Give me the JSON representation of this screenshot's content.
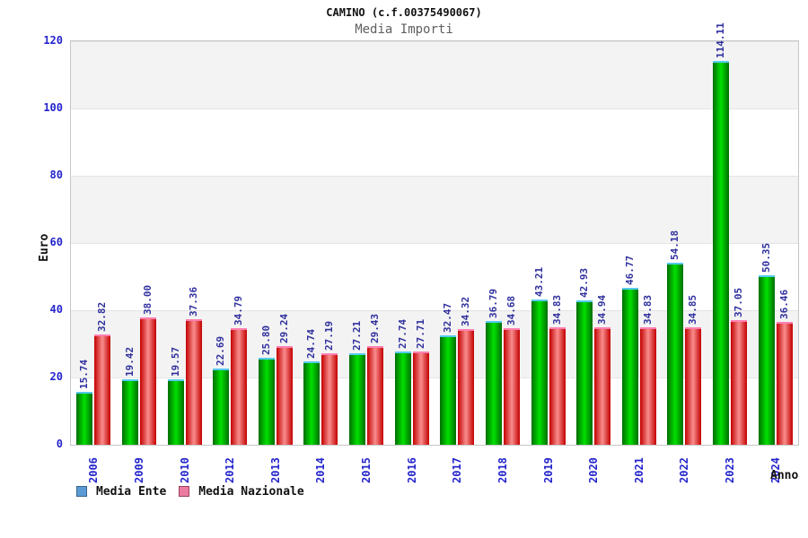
{
  "chart_data": {
    "type": "bar",
    "title": "CAMINO (c.f.00375490067)",
    "subtitle": "Media Importi",
    "xlabel": "Anno",
    "ylabel": "Euro",
    "ylim": [
      0,
      120
    ],
    "yticks": [
      0,
      20,
      40,
      60,
      80,
      100,
      120
    ],
    "grid": "horizontal-bands-every-20",
    "legend_position": "bottom-left",
    "categories": [
      "2006",
      "2009",
      "2010",
      "2012",
      "2013",
      "2014",
      "2015",
      "2016",
      "2017",
      "2018",
      "2019",
      "2020",
      "2021",
      "2022",
      "2023",
      "2024"
    ],
    "series": [
      {
        "name": "Media Ente",
        "values": [
          15.74,
          19.42,
          19.57,
          22.69,
          25.8,
          24.74,
          27.21,
          27.74,
          32.47,
          36.79,
          43.21,
          42.93,
          46.77,
          54.18,
          114.11,
          50.35
        ],
        "legend_swatch_color": "#5b9bd5",
        "legend_swatch_border": "#36648b",
        "bar_gradient": [
          "#006e00",
          "#00e000",
          "#006e00"
        ],
        "bar_cap_color": "#55cbee"
      },
      {
        "name": "Media Nazionale",
        "values": [
          32.82,
          38.0,
          37.36,
          34.79,
          29.24,
          27.19,
          29.43,
          27.71,
          34.32,
          34.68,
          34.83,
          34.94,
          34.83,
          34.85,
          37.05,
          36.46
        ],
        "legend_swatch_color": "#ec7ba2",
        "legend_swatch_border": "#9c4060",
        "bar_gradient": [
          "#c40000",
          "#f98d8d",
          "#c40000"
        ],
        "bar_cap_color": "#ff7fb2"
      }
    ]
  },
  "colors": {
    "axis_text": "#2424cc",
    "value_label_text": "#30309e",
    "band_gray": "#f3f3f3",
    "plot_border": "#c6c6c6",
    "subtitle_text": "#606060"
  }
}
